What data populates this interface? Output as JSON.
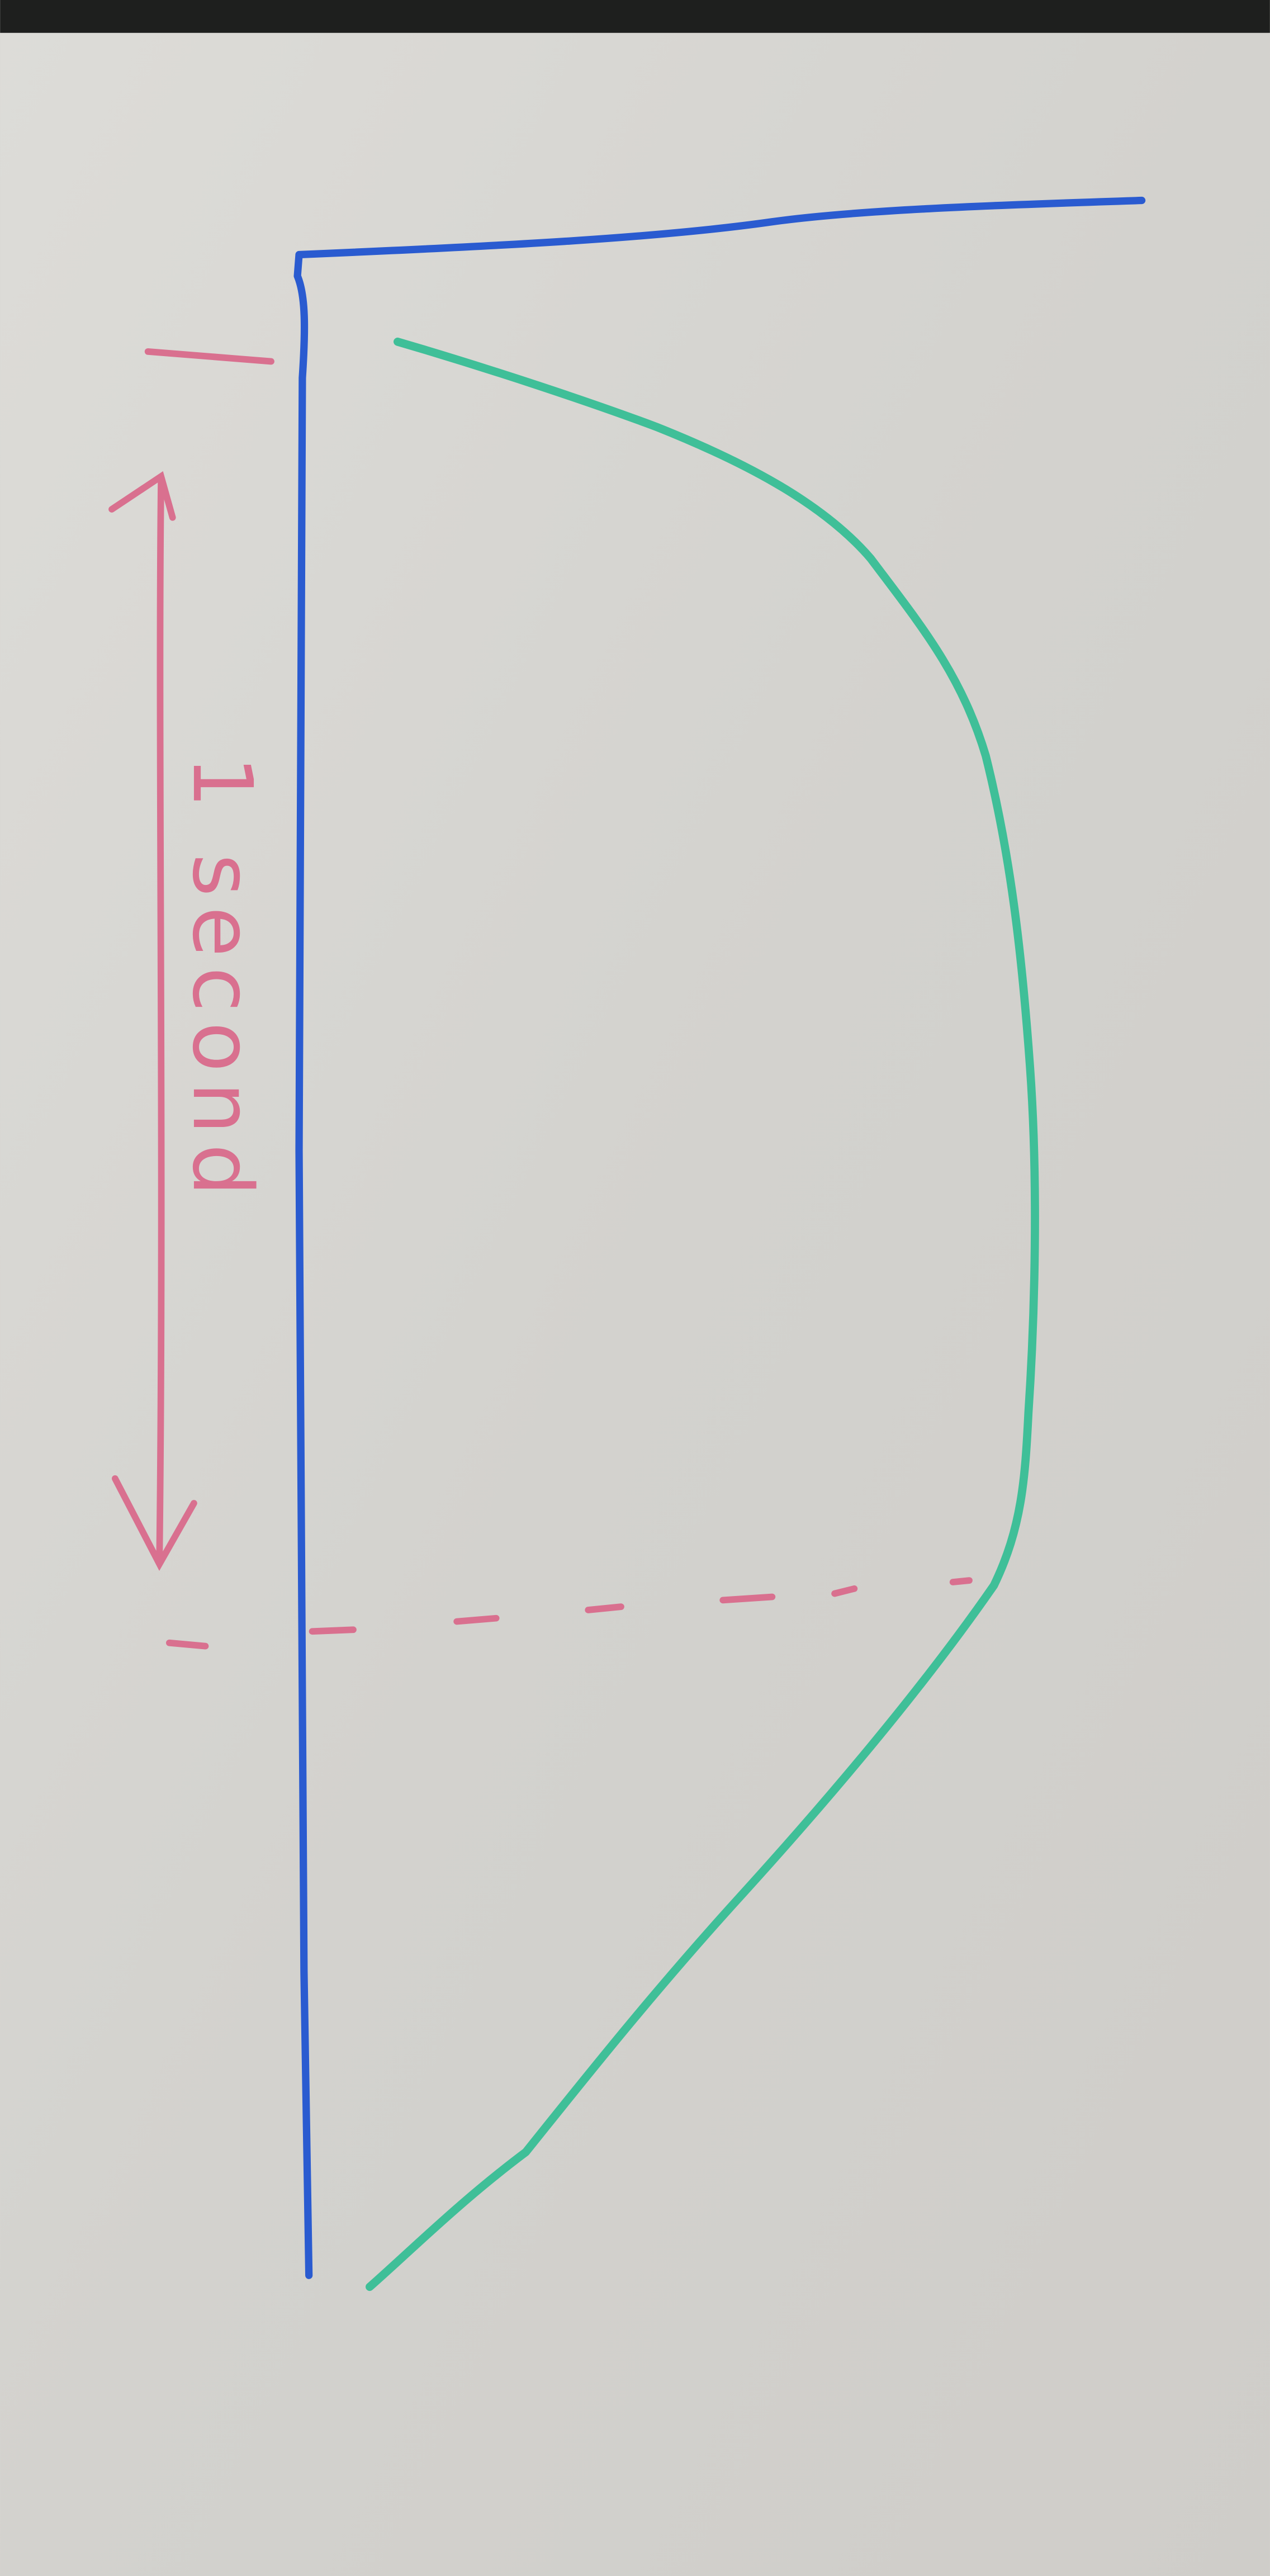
{
  "annotation": {
    "label": "1 second"
  }
}
